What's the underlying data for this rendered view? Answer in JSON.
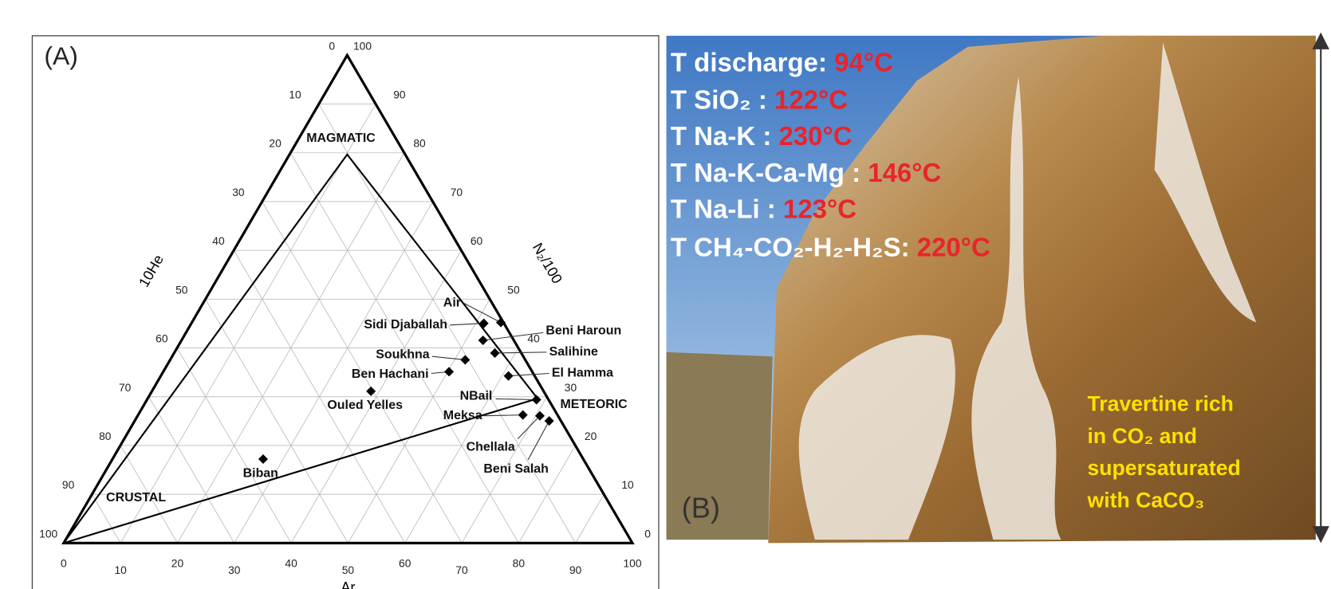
{
  "panel_a": {
    "label": "(A)",
    "left_axis_title": "10He",
    "right_axis_title": "N₂/100",
    "bottom_axis_title": "Ar",
    "left_ticks": [
      "0",
      "10",
      "20",
      "30",
      "40",
      "50",
      "60",
      "70",
      "80",
      "90",
      "100"
    ],
    "right_ticks": [
      "100",
      "90",
      "80",
      "70",
      "60",
      "50",
      "40",
      "30",
      "20",
      "10",
      "0"
    ],
    "bottom_ticks": [
      "0",
      "10",
      "20",
      "30",
      "40",
      "50",
      "60",
      "70",
      "80",
      "90",
      "100"
    ],
    "regions": [
      "MAGMATIC",
      "CRUSTAL",
      "METEORIC"
    ],
    "samples": [
      "Air",
      "Sidi Djaballah",
      "Beni Haroun",
      "Salihine",
      "Soukhna",
      "El Hamma",
      "Ben Hachani",
      "Ouled Yelles",
      "NBail",
      "Meksa",
      "Chellala",
      "Beni Salah",
      "Biban"
    ]
  },
  "panel_b": {
    "label": "(B)",
    "temperatures": [
      {
        "name": "T discharge: ",
        "value": "94°C"
      },
      {
        "name": "T SiO₂ : ",
        "value": "122°C"
      },
      {
        "name": "T Na-K : ",
        "value": "230°C"
      },
      {
        "name": "T Na-K-Ca-Mg : ",
        "value": "146°C"
      },
      {
        "name": "T Na-Li : ",
        "value": "123°C"
      },
      {
        "name": "T CH₄-CO₂-H₂-H₂S: ",
        "value": "220°C"
      }
    ],
    "note": [
      "Travertine rich",
      "in CO₂ and",
      "supersaturated",
      "with CaCO₃"
    ]
  }
}
